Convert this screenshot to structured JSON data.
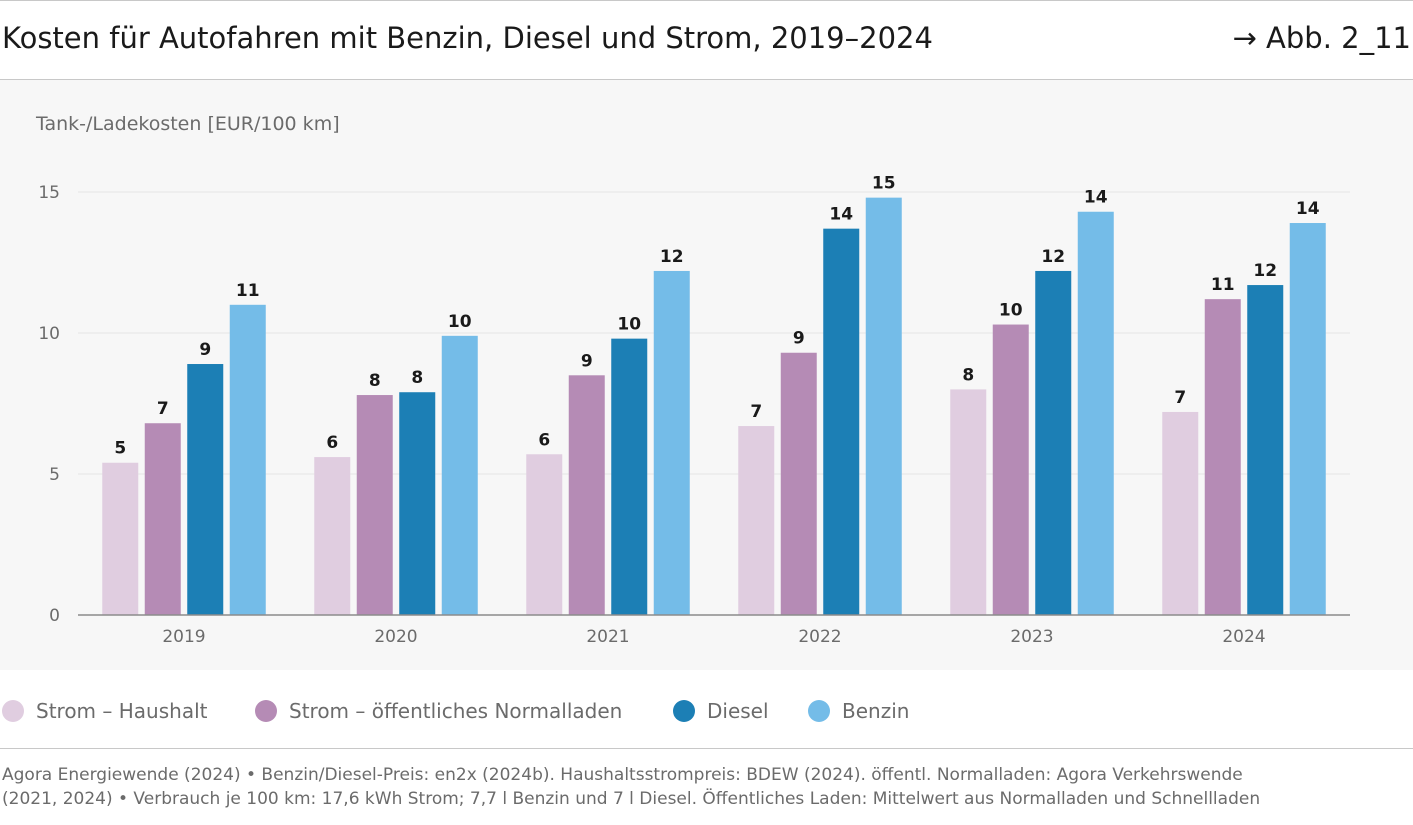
{
  "header": {
    "title": "Kosten für Autofahren mit Benzin, Diesel und Strom, 2019–2024",
    "figure_ref": "→ Abb. 2_11"
  },
  "chart_data": {
    "type": "bar",
    "ylabel": "Tank-/Ladekosten [EUR/100 km]",
    "ylim": [
      0,
      15
    ],
    "yticks": [
      0,
      5,
      10,
      15
    ],
    "grid": true,
    "legend_position": "bottom-left",
    "categories": [
      "2019",
      "2020",
      "2021",
      "2022",
      "2023",
      "2024"
    ],
    "series": [
      {
        "name": "Strom – Haushalt",
        "color": "#e0cde0",
        "values": [
          5.4,
          5.6,
          5.7,
          6.7,
          8.0,
          7.2
        ],
        "labels": [
          "5",
          "6",
          "6",
          "7",
          "8",
          "7"
        ]
      },
      {
        "name": "Strom – öffentliches Normalladen",
        "color": "#b58bb5",
        "values": [
          6.8,
          7.8,
          8.5,
          9.3,
          10.3,
          11.2
        ],
        "labels": [
          "7",
          "8",
          "9",
          "9",
          "10",
          "11"
        ]
      },
      {
        "name": "Diesel",
        "color": "#1c7fb5",
        "values": [
          8.9,
          7.9,
          9.8,
          13.7,
          12.2,
          11.7
        ],
        "labels": [
          "9",
          "8",
          "10",
          "14",
          "12",
          "12"
        ]
      },
      {
        "name": "Benzin",
        "color": "#74bce8",
        "values": [
          11.0,
          9.9,
          12.2,
          14.8,
          14.3,
          13.9
        ],
        "labels": [
          "11",
          "10",
          "12",
          "15",
          "14",
          "14"
        ]
      }
    ]
  },
  "source": {
    "line1": "Agora Energiewende (2024) • Benzin/Diesel-Preis: en2x (2024b). Haushaltsstrompreis: BDEW (2024). öffentl. Normalladen: Agora Verkehrswende",
    "line2": "(2021, 2024) • Verbrauch je 100 km: 17,6 kWh Strom; 7,7 l Benzin und 7 l Diesel. Öffentliches Laden: Mittelwert aus Normalladen und Schnellladen"
  }
}
